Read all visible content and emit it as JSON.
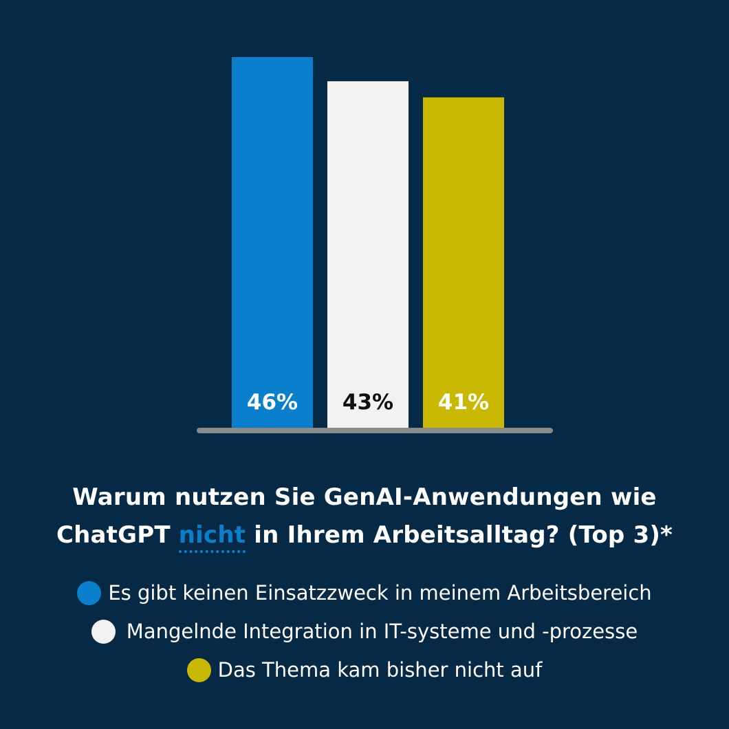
{
  "chart_data": {
    "type": "bar",
    "title_parts": [
      "Warum nutzen Sie GenAI-Anwendungen wie",
      "ChatGPT",
      "nicht",
      "in Ihrem Arbeitsalltag? (Top 3)*"
    ],
    "categories": [
      "Es gibt keinen Einsatzzweck in meinem Arbeitsbereich",
      "Mangelnde Integration in IT-systeme und -prozesse",
      "Das Thema kam bisher nicht auf"
    ],
    "values": [
      46,
      43,
      41
    ],
    "value_labels": [
      "46%",
      "43%",
      "41%"
    ],
    "ylim": [
      0,
      46
    ],
    "grid": false,
    "legend_position": "bottom",
    "colors": [
      "#0a80cc",
      "#f3f2f1",
      "#c8b800"
    ],
    "label_colors": [
      "#ffffff",
      "#111111",
      "#ffffff"
    ]
  },
  "legend": {
    "items": [
      {
        "label": "Es gibt keinen Einsatzzweck in meinem Arbeitsbereich",
        "color": "#0a80cc"
      },
      {
        "label": "Mangelnde Integration in IT-systeme und -prozesse",
        "color": "#f3f2f1"
      },
      {
        "label": "Das Thema kam bisher nicht auf",
        "color": "#c8b800"
      }
    ]
  },
  "colors": {
    "background": "#062a45",
    "baseline": "#8a8a8a",
    "highlight": "#0a80cc"
  }
}
